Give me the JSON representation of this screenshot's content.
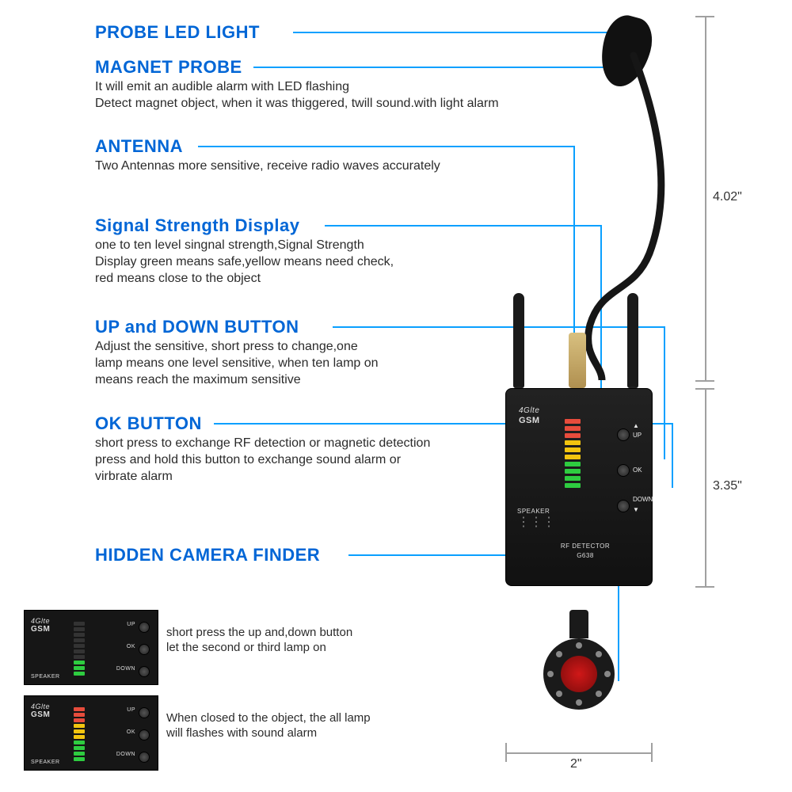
{
  "features": {
    "probe_led": {
      "title": "PROBE LED LIGHT"
    },
    "magnet_probe": {
      "title": "MAGNET PROBE",
      "desc": "It will emit an audible alarm with LED flashing\nDetect magnet object, when it was thiggered, twill sound.with light alarm"
    },
    "antenna": {
      "title": "ANTENNA",
      "desc": "Two Antennas more sensitive, receive radio waves accurately"
    },
    "signal_display": {
      "title": "Signal Strength Display",
      "desc": "one to ten level singnal strength,Signal Strength\nDisplay green means safe,yellow means need check,\nred means close to the object"
    },
    "updown": {
      "title": "UP and DOWN BUTTON",
      "desc": "Adjust the sensitive, short press to change,one\nlamp means one level sensitive, when ten lamp on\nmeans reach the maximum sensitive"
    },
    "ok": {
      "title": "OK BUTTON",
      "desc": "short press to exchange RF detection or magnetic detection\npress and hold this button to exchange sound alarm or\nvirbrate alarm"
    },
    "hidden_camera": {
      "title": "HIDDEN CAMERA FINDER"
    }
  },
  "panels": {
    "caption1": "short press the up and,down button\nlet the second or third lamp on",
    "caption2": "When closed to the object, the all lamp\nwill flashes with sound alarm"
  },
  "device": {
    "brand_top": "4Glte",
    "brand_sub": "GSM",
    "speaker_label": "SPEAKER",
    "model_line1": "RF DETECTOR",
    "model_line2": "G638",
    "btn_up": "UP",
    "btn_ok": "OK",
    "btn_down": "DOWN",
    "led_colors": [
      "#2ecc40",
      "#2ecc40",
      "#2ecc40",
      "#2ecc40",
      "#f1c40f",
      "#f1c40f",
      "#f1c40f",
      "#e74c3c",
      "#e74c3c",
      "#e74c3c"
    ]
  },
  "dimensions": {
    "probe_height": "4.02\"",
    "body_height": "3.35\"",
    "body_width": "2\""
  },
  "colors": {
    "heading": "#0066d6",
    "leader": "#0aa0ff"
  }
}
